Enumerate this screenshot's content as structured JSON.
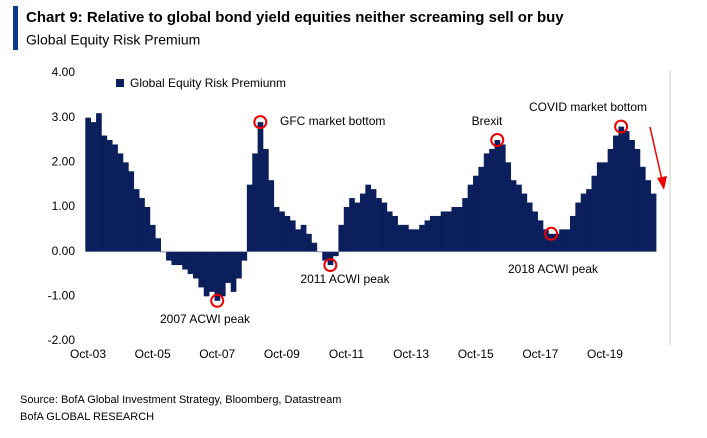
{
  "chart_data": {
    "type": "bar",
    "title": "Chart 9: Relative to global bond yield equities neither screaming sell or buy",
    "subtitle": "Global Equity Risk Premium",
    "legend": "Global Equity Risk Premiunm",
    "color": "#0b1f5c",
    "categories": [
      "Oct-03",
      null,
      null,
      null,
      null,
      null,
      null,
      null,
      null,
      null,
      null,
      null,
      "Oct-05",
      null,
      null,
      null,
      null,
      null,
      null,
      null,
      null,
      null,
      null,
      null,
      "Oct-07",
      null,
      null,
      null,
      null,
      null,
      null,
      null,
      null,
      null,
      null,
      null,
      "Oct-09",
      null,
      null,
      null,
      null,
      null,
      null,
      null,
      null,
      null,
      null,
      null,
      "Oct-11",
      null,
      null,
      null,
      null,
      null,
      null,
      null,
      null,
      null,
      null,
      null,
      "Oct-13",
      null,
      null,
      null,
      null,
      null,
      null,
      null,
      null,
      null,
      null,
      null,
      "Oct-15",
      null,
      null,
      null,
      null,
      null,
      null,
      null,
      null,
      null,
      null,
      null,
      "Oct-17",
      null,
      null,
      null,
      null,
      null,
      null,
      null,
      null,
      null,
      null,
      null,
      "Oct-19",
      null,
      null,
      null,
      null,
      null,
      null,
      null,
      null,
      null
    ],
    "values": [
      3.0,
      2.9,
      3.1,
      2.6,
      2.5,
      2.4,
      2.2,
      2.0,
      1.8,
      1.4,
      1.2,
      1.0,
      0.6,
      0.3,
      0.0,
      -0.2,
      -0.3,
      -0.3,
      -0.4,
      -0.5,
      -0.6,
      -0.8,
      -1.0,
      -0.9,
      -1.1,
      -1.0,
      -0.7,
      -0.9,
      -0.6,
      -0.2,
      1.5,
      2.2,
      2.9,
      2.3,
      1.6,
      1.0,
      0.9,
      0.8,
      0.7,
      0.5,
      0.6,
      0.4,
      0.2,
      0.0,
      -0.2,
      -0.3,
      -0.1,
      0.6,
      1.0,
      1.2,
      1.1,
      1.3,
      1.5,
      1.4,
      1.2,
      1.1,
      0.9,
      0.8,
      0.6,
      0.6,
      0.5,
      0.5,
      0.6,
      0.7,
      0.8,
      0.8,
      0.9,
      0.9,
      1.0,
      1.0,
      1.2,
      1.5,
      1.7,
      1.9,
      2.2,
      2.3,
      2.5,
      2.4,
      2.0,
      1.6,
      1.5,
      1.3,
      1.1,
      0.9,
      0.7,
      0.5,
      0.4,
      0.4,
      0.5,
      0.5,
      0.8,
      1.1,
      1.3,
      1.4,
      1.7,
      2.0,
      2.0,
      2.3,
      2.6,
      2.8,
      2.7,
      2.5,
      2.3,
      1.9,
      1.6,
      1.3
    ],
    "ylim": [
      -2,
      4
    ],
    "yticks": [
      {
        "value": -2,
        "label": "-2.00"
      },
      {
        "value": -1,
        "label": "-1.00"
      },
      {
        "value": 0,
        "label": "0.00"
      },
      {
        "value": 1,
        "label": "1.00"
      },
      {
        "value": 2,
        "label": "2.00"
      },
      {
        "value": 3,
        "label": "3.00"
      },
      {
        "value": 4,
        "label": "4.00"
      }
    ],
    "annotations": [
      "GFC market bottom",
      "Brexit",
      "COVID market bottom",
      "2007  ACWI peak",
      "2011  ACWI peak",
      "2018  ACWI peak"
    ],
    "source": "Source:  BofA Global Investment Strategy, Bloomberg, Datastream",
    "footer": "BofA GLOBAL RESEARCH"
  }
}
